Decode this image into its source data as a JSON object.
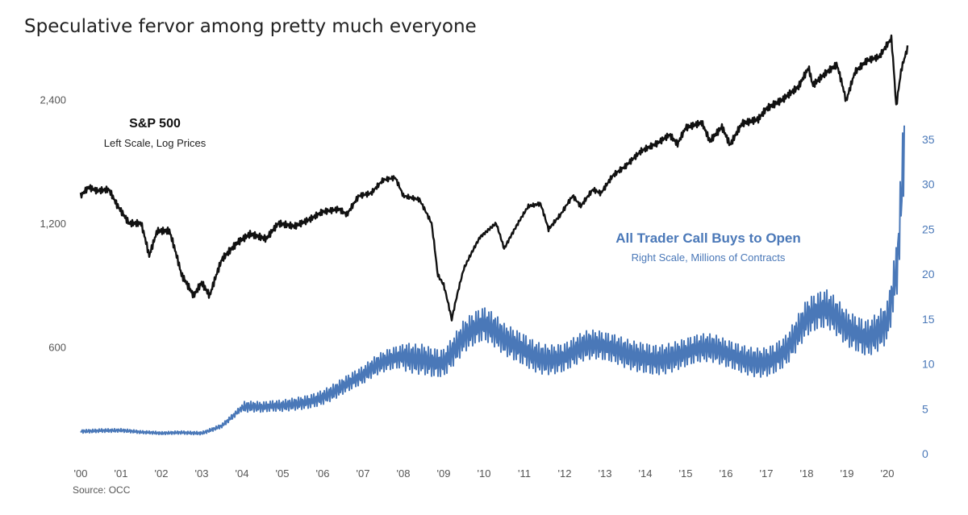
{
  "title": "Speculative fervor among pretty much everyone",
  "source": "Source:  OCC",
  "annotations": {
    "sp500_label": "S&P 500",
    "sp500_sub": "Left Scale, Log Prices",
    "calls_label": "All Trader Call Buys to Open",
    "calls_sub": "Right Scale, Millions of Contracts"
  },
  "colors": {
    "sp500": "#111111",
    "calls": "#4a78b8",
    "axis_right": "#4a78b8"
  },
  "chart_data": {
    "type": "line",
    "x_axis": {
      "range": [
        2000,
        2020.5
      ],
      "ticks": [
        {
          "value": 2000,
          "label": "'00"
        },
        {
          "value": 2001,
          "label": "'01"
        },
        {
          "value": 2002,
          "label": "'02"
        },
        {
          "value": 2003,
          "label": "'03"
        },
        {
          "value": 2004,
          "label": "'04"
        },
        {
          "value": 2005,
          "label": "'05"
        },
        {
          "value": 2006,
          "label": "'06"
        },
        {
          "value": 2007,
          "label": "'07"
        },
        {
          "value": 2008,
          "label": "'08"
        },
        {
          "value": 2009,
          "label": "'09"
        },
        {
          "value": 2010,
          "label": "'10"
        },
        {
          "value": 2011,
          "label": "'11"
        },
        {
          "value": 2012,
          "label": "'12"
        },
        {
          "value": 2013,
          "label": "'13"
        },
        {
          "value": 2014,
          "label": "'14"
        },
        {
          "value": 2015,
          "label": "'15"
        },
        {
          "value": 2016,
          "label": "'16"
        },
        {
          "value": 2017,
          "label": "'17"
        },
        {
          "value": 2018,
          "label": "'18"
        },
        {
          "value": 2019,
          "label": "'19"
        },
        {
          "value": 2020,
          "label": "'20"
        }
      ]
    },
    "y_left": {
      "scale": "log",
      "range": [
        330,
        3500
      ],
      "ticks": [
        {
          "value": 600,
          "label": "600"
        },
        {
          "value": 1200,
          "label": "1,200"
        },
        {
          "value": 2400,
          "label": "2,400"
        }
      ]
    },
    "y_right": {
      "scale": "linear",
      "range": [
        0,
        35
      ],
      "ticks": [
        {
          "value": 0,
          "label": "0"
        },
        {
          "value": 5,
          "label": "5"
        },
        {
          "value": 10,
          "label": "10"
        },
        {
          "value": 15,
          "label": "15"
        },
        {
          "value": 20,
          "label": "20"
        },
        {
          "value": 25,
          "label": "25"
        },
        {
          "value": 30,
          "label": "30"
        },
        {
          "value": 35,
          "label": "35"
        }
      ]
    },
    "grid": false,
    "series": [
      {
        "name": "S&P 500",
        "axis": "left",
        "points": [
          [
            2000.0,
            1400
          ],
          [
            2000.2,
            1470
          ],
          [
            2000.4,
            1440
          ],
          [
            2000.7,
            1450
          ],
          [
            2000.9,
            1330
          ],
          [
            2001.2,
            1200
          ],
          [
            2001.5,
            1200
          ],
          [
            2001.7,
            1000
          ],
          [
            2001.9,
            1150
          ],
          [
            2002.2,
            1150
          ],
          [
            2002.5,
            900
          ],
          [
            2002.8,
            800
          ],
          [
            2003.0,
            860
          ],
          [
            2003.2,
            800
          ],
          [
            2003.5,
            980
          ],
          [
            2003.9,
            1080
          ],
          [
            2004.2,
            1130
          ],
          [
            2004.6,
            1100
          ],
          [
            2004.9,
            1200
          ],
          [
            2005.3,
            1180
          ],
          [
            2005.7,
            1230
          ],
          [
            2006.0,
            1280
          ],
          [
            2006.4,
            1300
          ],
          [
            2006.6,
            1260
          ],
          [
            2006.9,
            1400
          ],
          [
            2007.2,
            1420
          ],
          [
            2007.5,
            1530
          ],
          [
            2007.8,
            1550
          ],
          [
            2008.0,
            1400
          ],
          [
            2008.4,
            1370
          ],
          [
            2008.7,
            1200
          ],
          [
            2008.85,
            900
          ],
          [
            2009.0,
            850
          ],
          [
            2009.2,
            700
          ],
          [
            2009.5,
            930
          ],
          [
            2009.9,
            1110
          ],
          [
            2010.3,
            1200
          ],
          [
            2010.5,
            1040
          ],
          [
            2010.8,
            1180
          ],
          [
            2011.1,
            1320
          ],
          [
            2011.4,
            1340
          ],
          [
            2011.6,
            1160
          ],
          [
            2011.9,
            1260
          ],
          [
            2012.2,
            1400
          ],
          [
            2012.4,
            1320
          ],
          [
            2012.7,
            1450
          ],
          [
            2012.9,
            1420
          ],
          [
            2013.2,
            1570
          ],
          [
            2013.5,
            1650
          ],
          [
            2013.9,
            1800
          ],
          [
            2014.3,
            1880
          ],
          [
            2014.6,
            1970
          ],
          [
            2014.8,
            1870
          ],
          [
            2015.0,
            2050
          ],
          [
            2015.4,
            2110
          ],
          [
            2015.6,
            1900
          ],
          [
            2015.9,
            2060
          ],
          [
            2016.1,
            1860
          ],
          [
            2016.4,
            2100
          ],
          [
            2016.8,
            2150
          ],
          [
            2017.0,
            2280
          ],
          [
            2017.4,
            2400
          ],
          [
            2017.8,
            2580
          ],
          [
            2018.05,
            2870
          ],
          [
            2018.15,
            2600
          ],
          [
            2018.5,
            2800
          ],
          [
            2018.75,
            2920
          ],
          [
            2018.98,
            2380
          ],
          [
            2019.2,
            2800
          ],
          [
            2019.5,
            2990
          ],
          [
            2019.8,
            3050
          ],
          [
            2020.1,
            3380
          ],
          [
            2020.22,
            2300
          ],
          [
            2020.35,
            2850
          ],
          [
            2020.5,
            3200
          ]
        ]
      },
      {
        "name": "All Trader Call Buys to Open",
        "axis": "right",
        "points": [
          [
            2000.0,
            2.6
          ],
          [
            2000.5,
            2.7
          ],
          [
            2001.0,
            2.6
          ],
          [
            2001.5,
            2.3
          ],
          [
            2002.0,
            2.2
          ],
          [
            2002.5,
            2.4
          ],
          [
            2003.0,
            2.4
          ],
          [
            2003.5,
            3.2
          ],
          [
            2004.0,
            5.0
          ],
          [
            2004.5,
            4.8
          ],
          [
            2005.0,
            5.2
          ],
          [
            2005.5,
            6.0
          ],
          [
            2006.0,
            6.8
          ],
          [
            2006.5,
            7.6
          ],
          [
            2007.0,
            8.2
          ],
          [
            2007.5,
            9.6
          ],
          [
            2008.0,
            11.0
          ],
          [
            2008.5,
            11.6
          ],
          [
            2009.0,
            10.8
          ],
          [
            2009.5,
            12.6
          ],
          [
            2010.0,
            13.2
          ],
          [
            2010.5,
            12.2
          ],
          [
            2011.0,
            12.3
          ],
          [
            2011.5,
            11.6
          ],
          [
            2012.0,
            11.0
          ],
          [
            2012.5,
            11.2
          ],
          [
            2013.0,
            11.0
          ],
          [
            2013.5,
            11.2
          ],
          [
            2014.0,
            11.7
          ],
          [
            2014.5,
            11.4
          ],
          [
            2015.0,
            11.0
          ],
          [
            2015.5,
            10.8
          ],
          [
            2016.0,
            10.6
          ],
          [
            2016.5,
            10.9
          ],
          [
            2017.0,
            11.3
          ],
          [
            2017.5,
            12.0
          ],
          [
            2018.0,
            14.2
          ],
          [
            2018.5,
            14.8
          ],
          [
            2019.0,
            13.8
          ],
          [
            2019.5,
            14.0
          ],
          [
            2020.0,
            16.0
          ],
          [
            2020.25,
            22.0
          ],
          [
            2020.42,
            35.0
          ]
        ]
      }
    ]
  }
}
